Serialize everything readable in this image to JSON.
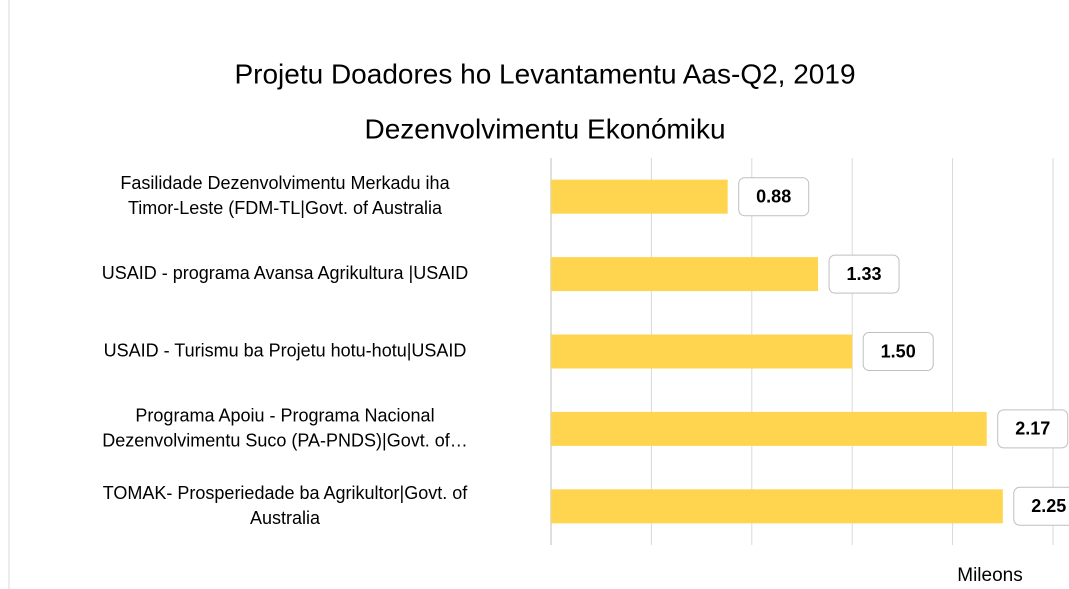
{
  "chart_data": {
    "type": "hbar",
    "title": "Projetu Doadores ho Levantamentu Aas-Q2, 2019",
    "subtitle": "Dezenvolvimentu Ekonómiku",
    "categories": [
      "Fasilidade Dezenvolvimentu Merkadu iha\nTimor-Leste (FDM-TL|Govt. of Australia",
      "USAID - programa Avansa Agrikultura |USAID",
      "USAID - Turismu ba Projetu hotu-hotu|USAID",
      "Programa Apoiu - Programa Nacional\nDezenvolvimentu Suco (PA-PNDS)|Govt. of…",
      "TOMAK- Prosperiedade ba Agrikultor|Govt. of\nAustralia"
    ],
    "values": [
      0.88,
      1.33,
      1.5,
      2.17,
      2.25
    ],
    "value_labels": [
      "0.88",
      "1.33",
      "1.50",
      "2.17",
      "2.25"
    ],
    "color": "#ffd54f",
    "xlabel": "Mileons",
    "xlim": [
      0,
      2.5
    ],
    "xticks": [
      0,
      0.5,
      1,
      1.5,
      2,
      2.5
    ],
    "grid": true
  }
}
